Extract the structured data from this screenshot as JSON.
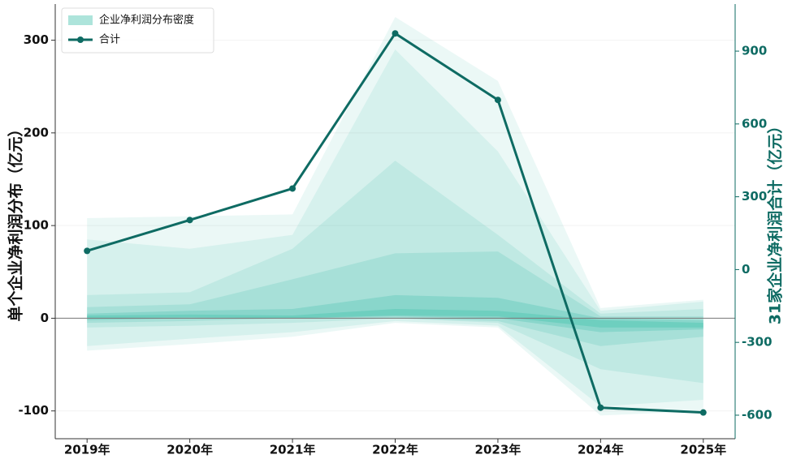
{
  "chart_data": {
    "type": "fan-line",
    "categories": [
      "2019年",
      "2020年",
      "2021年",
      "2022年",
      "2023年",
      "2024年",
      "2025年"
    ],
    "ylabel": "单个企业净利润分布（亿元）",
    "y2label": "31家企业净利润合计（亿元）",
    "ylim": [
      -130,
      339
    ],
    "yticks": [
      -100,
      0,
      100,
      200,
      300
    ],
    "y2lim": [
      -697,
      1094
    ],
    "y2ticks": [
      -600,
      -300,
      0,
      300,
      600,
      900
    ],
    "grid": true,
    "legend": "upper left",
    "series": [
      {
        "name": "企业净利润分布密度",
        "type": "bands",
        "color": "#5cc9b8",
        "bands": [
          {
            "upper": [
              108,
              110,
              112,
              325,
              256,
              11,
              20
            ],
            "lower": [
              -35,
              -28,
              -20,
              -5,
              -10,
              -105,
              -100
            ],
            "opacity": 0.12
          },
          {
            "upper": [
              85,
              75,
              90,
              290,
              180,
              8,
              18
            ],
            "lower": [
              -30,
              -22,
              -15,
              -3,
              -8,
              -95,
              -88
            ],
            "opacity": 0.14
          },
          {
            "upper": [
              25,
              28,
              75,
              170,
              90,
              5,
              10
            ],
            "lower": [
              -10,
              -8,
              -5,
              0,
              -5,
              -55,
              -70
            ],
            "opacity": 0.18
          },
          {
            "upper": [
              12,
              15,
              42,
              70,
              72,
              2,
              2
            ],
            "lower": [
              -5,
              -3,
              0,
              0,
              -3,
              -30,
              -20
            ],
            "opacity": 0.25
          },
          {
            "upper": [
              5,
              8,
              10,
              25,
              22,
              0,
              -2
            ],
            "lower": [
              -2,
              0,
              0,
              2,
              0,
              -15,
              -12
            ],
            "opacity": 0.4
          },
          {
            "upper": [
              3,
              4,
              3,
              10,
              8,
              -2,
              -5
            ],
            "lower": [
              0,
              1,
              0,
              3,
              2,
              -10,
              -10
            ],
            "opacity": 0.6
          }
        ]
      },
      {
        "name": "合计",
        "type": "line",
        "axis": "y2",
        "color": "#0e6b63",
        "values": [
          77,
          204,
          334,
          973,
          699,
          -569,
          -589
        ]
      }
    ]
  }
}
